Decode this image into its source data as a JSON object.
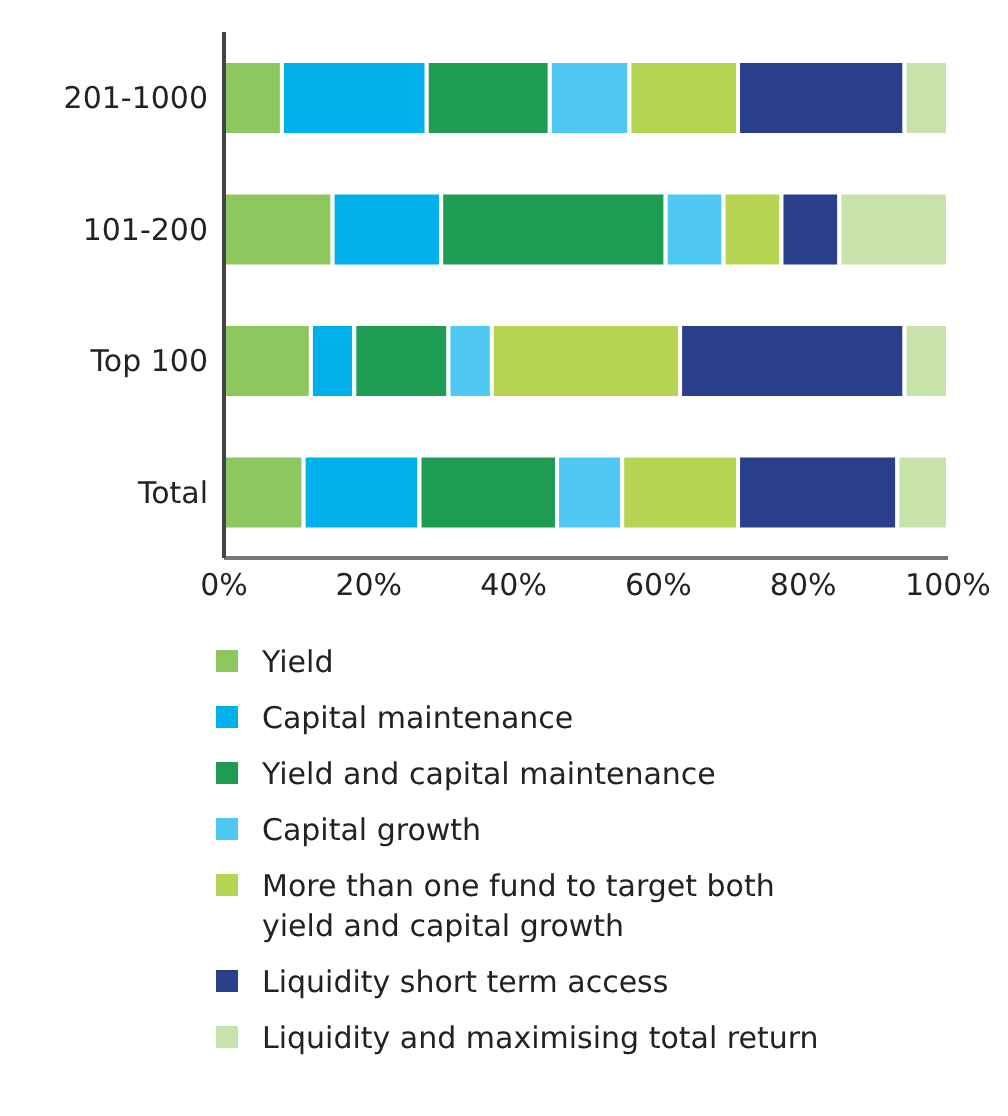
{
  "chart_data": {
    "type": "bar",
    "orientation": "horizontal",
    "stacked": true,
    "categories": [
      "201-1000",
      "101-200",
      "Top 100",
      "Total"
    ],
    "series": [
      {
        "name": "Yield",
        "color": "#8dc75e",
        "values": [
          8,
          15,
          12,
          11
        ]
      },
      {
        "name": "Capital maintenance",
        "color": "#00b0eb",
        "values": [
          20,
          15,
          6,
          16
        ]
      },
      {
        "name": "Yield and capital maintenance",
        "color": "#1e9c53",
        "values": [
          17,
          31,
          13,
          19
        ]
      },
      {
        "name": "Capital growth",
        "color": "#4fc9f4",
        "values": [
          11,
          8,
          6,
          9
        ]
      },
      {
        "name": "More than one fund to target both yield and capital growth",
        "color": "#b5d452",
        "values": [
          15,
          8,
          26,
          16
        ]
      },
      {
        "name": "Liquidity short term access",
        "color": "#2a3f8a",
        "values": [
          23,
          8,
          31,
          22
        ]
      },
      {
        "name": "Liquidity and maximising total return",
        "color": "#c7e2ab",
        "values": [
          6,
          15,
          6,
          7
        ]
      }
    ],
    "xlim": [
      0,
      100
    ],
    "xticks": [
      {
        "value": 0,
        "label": "0%"
      },
      {
        "value": 20,
        "label": "20%"
      },
      {
        "value": 40,
        "label": "40%"
      },
      {
        "value": 60,
        "label": "60%"
      },
      {
        "value": 80,
        "label": "80%"
      },
      {
        "value": 100,
        "label": "100%"
      }
    ],
    "grid": false,
    "legend": "bottom"
  }
}
